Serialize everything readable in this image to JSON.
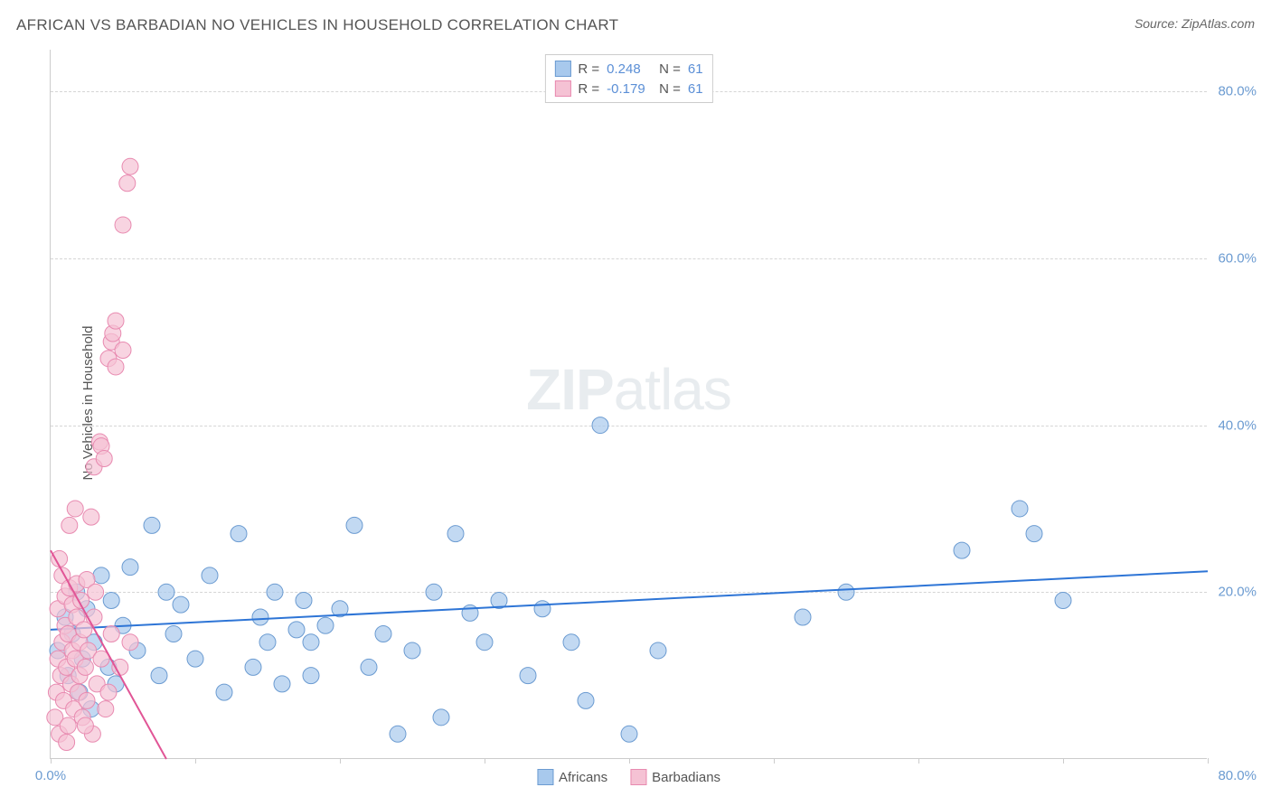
{
  "title": "AFRICAN VS BARBADIAN NO VEHICLES IN HOUSEHOLD CORRELATION CHART",
  "source_label": "Source:",
  "source_link_text": "ZipAtlas.com",
  "ylabel": "No Vehicles in Household",
  "watermark_zip": "ZIP",
  "watermark_atlas": "atlas",
  "chart": {
    "type": "scatter",
    "xlim": [
      0,
      80
    ],
    "ylim": [
      0,
      85
    ],
    "y_ticks": [
      20,
      40,
      60,
      80
    ],
    "y_tick_labels": [
      "20.0%",
      "40.0%",
      "60.0%",
      "80.0%"
    ],
    "x_tick_positions": [
      0,
      10,
      20,
      30,
      40,
      50,
      60,
      70,
      80
    ],
    "x_origin_label": "0.0%",
    "x_max_label": "80.0%",
    "gridline_color": "#d5d5d5",
    "axis_label_color": "#6b9bd1",
    "background_color": "#ffffff",
    "series": [
      {
        "name": "Africans",
        "marker_color": "#a8c9ed",
        "marker_border": "#6b9bd1",
        "marker_opacity": 0.7,
        "marker_radius": 9,
        "trend_line_color": "#2e75d6",
        "trend_line_width": 2,
        "trend": {
          "x1": 0,
          "y1": 15.5,
          "x2": 80,
          "y2": 22.5
        },
        "R": "0.248",
        "N": "61",
        "points": [
          [
            0.5,
            13
          ],
          [
            1,
            17
          ],
          [
            1.2,
            10
          ],
          [
            1.5,
            15
          ],
          [
            1.8,
            20
          ],
          [
            2,
            8
          ],
          [
            2.2,
            12
          ],
          [
            2.5,
            18
          ],
          [
            2.8,
            6
          ],
          [
            3,
            14
          ],
          [
            3.5,
            22
          ],
          [
            4,
            11
          ],
          [
            4.2,
            19
          ],
          [
            4.5,
            9
          ],
          [
            5,
            16
          ],
          [
            5.5,
            23
          ],
          [
            6,
            13
          ],
          [
            7,
            28
          ],
          [
            7.5,
            10
          ],
          [
            8,
            20
          ],
          [
            8.5,
            15
          ],
          [
            9,
            18.5
          ],
          [
            10,
            12
          ],
          [
            11,
            22
          ],
          [
            12,
            8
          ],
          [
            13,
            27
          ],
          [
            14,
            11
          ],
          [
            14.5,
            17
          ],
          [
            15,
            14
          ],
          [
            15.5,
            20
          ],
          [
            16,
            9
          ],
          [
            17,
            15.5
          ],
          [
            17.5,
            19
          ],
          [
            18,
            14
          ],
          [
            18,
            10
          ],
          [
            19,
            16
          ],
          [
            20,
            18
          ],
          [
            21,
            28
          ],
          [
            22,
            11
          ],
          [
            23,
            15
          ],
          [
            24,
            3
          ],
          [
            25,
            13
          ],
          [
            26.5,
            20
          ],
          [
            27,
            5
          ],
          [
            28,
            27
          ],
          [
            29,
            17.5
          ],
          [
            30,
            14
          ],
          [
            31,
            19
          ],
          [
            33,
            10
          ],
          [
            34,
            18
          ],
          [
            36,
            14
          ],
          [
            37,
            7
          ],
          [
            38,
            40
          ],
          [
            40,
            3
          ],
          [
            42,
            13
          ],
          [
            52,
            17
          ],
          [
            55,
            20
          ],
          [
            63,
            25
          ],
          [
            67,
            30
          ],
          [
            68,
            27
          ],
          [
            70,
            19
          ]
        ]
      },
      {
        "name": "Barbadians",
        "marker_color": "#f5c2d4",
        "marker_border": "#e88ab0",
        "marker_opacity": 0.7,
        "marker_radius": 9,
        "trend_line_color": "#e15596",
        "trend_line_width": 2,
        "trend": {
          "x1": 0,
          "y1": 25,
          "x2": 8,
          "y2": 0
        },
        "R": "-0.179",
        "N": "61",
        "points": [
          [
            0.3,
            5
          ],
          [
            0.4,
            8
          ],
          [
            0.5,
            12
          ],
          [
            0.5,
            18
          ],
          [
            0.6,
            3
          ],
          [
            0.7,
            10
          ],
          [
            0.8,
            14
          ],
          [
            0.8,
            22
          ],
          [
            0.9,
            7
          ],
          [
            1,
            16
          ],
          [
            1,
            19.5
          ],
          [
            1.1,
            11
          ],
          [
            1.2,
            15
          ],
          [
            1.2,
            4
          ],
          [
            1.3,
            20.5
          ],
          [
            1.4,
            9
          ],
          [
            1.5,
            13
          ],
          [
            1.5,
            18.5
          ],
          [
            1.6,
            6
          ],
          [
            1.7,
            12
          ],
          [
            1.8,
            17
          ],
          [
            1.8,
            21
          ],
          [
            1.9,
            8
          ],
          [
            2,
            14
          ],
          [
            2,
            10
          ],
          [
            2.1,
            19
          ],
          [
            2.2,
            5
          ],
          [
            2.3,
            15.5
          ],
          [
            2.4,
            11
          ],
          [
            2.5,
            7
          ],
          [
            2.5,
            21.5
          ],
          [
            2.6,
            13
          ],
          [
            2.8,
            29
          ],
          [
            3,
            17
          ],
          [
            3,
            35
          ],
          [
            3.2,
            9
          ],
          [
            3.4,
            38
          ],
          [
            3.5,
            12
          ],
          [
            3.5,
            37.5
          ],
          [
            3.7,
            36
          ],
          [
            4,
            8
          ],
          [
            4,
            48
          ],
          [
            4.2,
            50
          ],
          [
            4.2,
            15
          ],
          [
            4.3,
            51
          ],
          [
            4.5,
            47
          ],
          [
            4.5,
            52.5
          ],
          [
            4.8,
            11
          ],
          [
            5,
            49
          ],
          [
            5,
            64
          ],
          [
            5.3,
            69
          ],
          [
            5.5,
            71
          ],
          [
            5.5,
            14
          ],
          [
            1.3,
            28
          ],
          [
            1.7,
            30
          ],
          [
            3.8,
            6
          ],
          [
            2.9,
            3
          ],
          [
            1.1,
            2
          ],
          [
            0.6,
            24
          ],
          [
            2.4,
            4
          ],
          [
            3.1,
            20
          ]
        ]
      }
    ],
    "legend_top": {
      "rows": [
        {
          "swatch_fill": "#a8c9ed",
          "swatch_border": "#6b9bd1",
          "r_label": "R =",
          "r_val": "0.248",
          "n_label": "N =",
          "n_val": "61"
        },
        {
          "swatch_fill": "#f5c2d4",
          "swatch_border": "#e88ab0",
          "r_label": "R =",
          "r_val": "-0.179",
          "n_label": "N =",
          "n_val": "61"
        }
      ]
    },
    "legend_bottom": [
      {
        "swatch_fill": "#a8c9ed",
        "swatch_border": "#6b9bd1",
        "label": "Africans"
      },
      {
        "swatch_fill": "#f5c2d4",
        "swatch_border": "#e88ab0",
        "label": "Barbadians"
      }
    ]
  }
}
